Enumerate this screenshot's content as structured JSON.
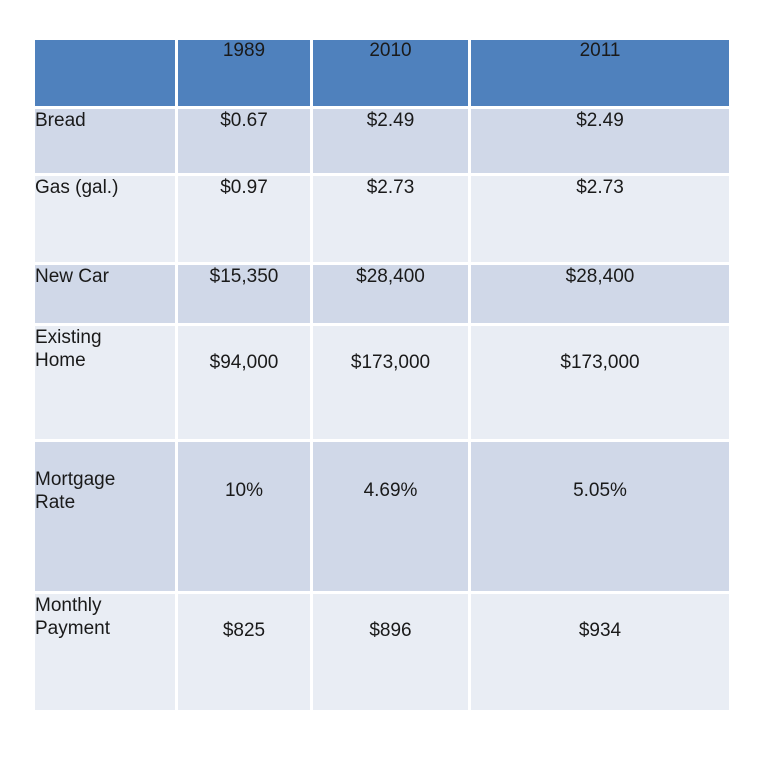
{
  "chart_data": {
    "type": "table",
    "columns": [
      "",
      "1989",
      "2010",
      "2011"
    ],
    "rows": [
      {
        "label": [
          "Bread"
        ],
        "values": [
          "$0.67",
          "$2.49",
          "$2.49"
        ],
        "emphasis": false
      },
      {
        "label": [
          "Gas (gal.)"
        ],
        "values": [
          "$0.97",
          "$2.73",
          "$2.73"
        ],
        "emphasis": false
      },
      {
        "label": [
          "New Car"
        ],
        "values": [
          "$15,350",
          "$28,400",
          "$28,400"
        ],
        "emphasis": false
      },
      {
        "label": [
          "Existing",
          "Home"
        ],
        "values": [
          "$94,000",
          "$173,000",
          "$173,000"
        ],
        "emphasis": false
      },
      {
        "label": [
          "Mortgage",
          "Rate"
        ],
        "values": [
          "10%",
          "4.69%",
          "5.05%"
        ],
        "emphasis": true
      },
      {
        "label": [
          "Monthly",
          "Payment"
        ],
        "values": [
          "$825",
          "$896",
          "$934"
        ],
        "emphasis": false
      }
    ],
    "colors": {
      "header": "#4f81bd",
      "row_dark": "#d0d8e8",
      "row_light": "#e9edf4"
    }
  }
}
